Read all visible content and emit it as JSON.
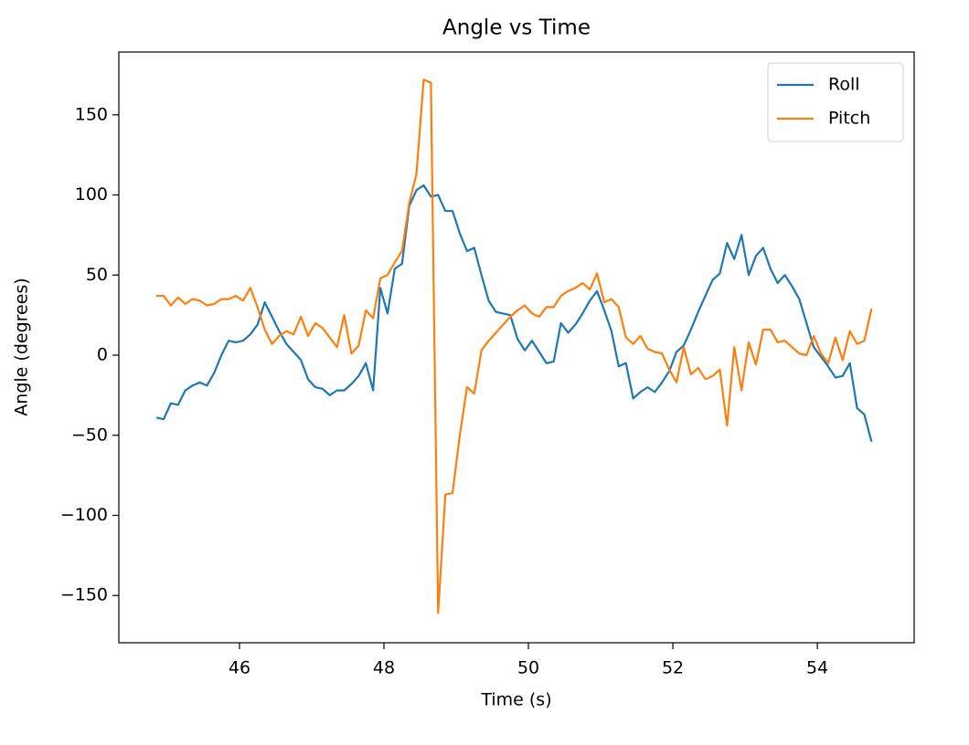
{
  "chart_data": {
    "type": "line",
    "title": "Angle vs Time",
    "x_label": "Time (s)",
    "y_label": "Angle (degrees)",
    "x": [
      44.85,
      44.95,
      45.05,
      45.15,
      45.25,
      45.35,
      45.45,
      45.55,
      45.65,
      45.75,
      45.85,
      45.95,
      46.05,
      46.15,
      46.25,
      46.35,
      46.45,
      46.55,
      46.65,
      46.75,
      46.85,
      46.95,
      47.05,
      47.15,
      47.25,
      47.35,
      47.45,
      47.55,
      47.65,
      47.75,
      47.85,
      47.95,
      48.05,
      48.15,
      48.25,
      48.35,
      48.45,
      48.55,
      48.65,
      48.75,
      48.85,
      48.95,
      49.05,
      49.15,
      49.25,
      49.35,
      49.45,
      49.55,
      49.65,
      49.75,
      49.85,
      49.95,
      50.05,
      50.15,
      50.25,
      50.35,
      50.45,
      50.55,
      50.65,
      50.75,
      50.85,
      50.95,
      51.05,
      51.15,
      51.25,
      51.35,
      51.45,
      51.55,
      51.65,
      51.75,
      51.85,
      51.95,
      52.05,
      52.15,
      52.25,
      52.35,
      52.45,
      52.55,
      52.65,
      52.75,
      52.85,
      52.95,
      53.05,
      53.15,
      53.25,
      53.35,
      53.45,
      53.55,
      53.65,
      53.75,
      53.85,
      53.95,
      54.05,
      54.15,
      54.25,
      54.35,
      54.45,
      54.55,
      54.65,
      54.75
    ],
    "series": [
      {
        "name": "Roll",
        "color": "#1f77b4",
        "values": [
          -39,
          -40,
          -30,
          -31,
          -22,
          -19,
          -17,
          -19,
          -11,
          0,
          9,
          8,
          9,
          13,
          19,
          33,
          24,
          15,
          7,
          2,
          -3,
          -15,
          -20,
          -21,
          -25,
          -22,
          -22,
          -18,
          -13,
          -5,
          -22,
          42,
          26,
          54,
          57,
          93,
          103,
          106,
          99,
          100,
          90,
          90,
          76,
          65,
          67,
          50,
          34,
          27,
          26,
          25,
          10,
          3,
          9,
          2,
          -5,
          -4,
          20,
          14,
          19,
          26,
          34,
          40,
          28,
          15,
          -7,
          -5,
          -27,
          -23,
          -20,
          -23,
          -17,
          -10,
          2,
          6,
          16,
          27,
          37,
          47,
          51,
          70,
          60,
          75,
          50,
          62,
          67,
          54,
          45,
          50,
          43,
          35,
          20,
          5,
          -1,
          -7,
          -14,
          -13,
          -5,
          -33,
          -37,
          -54
        ]
      },
      {
        "name": "Pitch",
        "color": "#ff7f0e",
        "values": [
          37,
          37,
          31,
          36,
          32,
          35,
          34,
          31,
          32,
          35,
          35,
          37,
          34,
          42,
          30,
          16,
          7,
          12,
          15,
          13,
          24,
          12,
          20,
          17,
          11,
          5,
          25,
          1,
          6,
          28,
          23,
          48,
          50,
          58,
          65,
          95,
          113,
          172,
          170,
          -161,
          -87,
          -86,
          -50,
          -20,
          -24,
          3,
          9,
          14,
          19,
          24,
          28,
          31,
          26,
          24,
          30,
          30,
          37,
          40,
          42,
          45,
          41,
          51,
          33,
          35,
          30,
          11,
          7,
          12,
          4,
          2,
          1,
          -9,
          -17,
          5,
          -12,
          -8,
          -15,
          -13,
          -9,
          -44,
          5,
          -22,
          8,
          -6,
          16,
          16,
          8,
          9,
          5,
          1,
          0,
          12,
          1,
          -5,
          11,
          -3,
          15,
          7,
          9,
          29
        ]
      }
    ],
    "xlim": [
      44.33,
      55.34
    ],
    "ylim": [
      -179.5,
      189.2
    ],
    "xticks": [
      46,
      48,
      50,
      52,
      54
    ],
    "yticks": [
      {
        "value": -150,
        "label": "−150"
      },
      {
        "value": -100,
        "label": "−100"
      },
      {
        "value": -50,
        "label": "−50"
      },
      0,
      50,
      100,
      150
    ],
    "legend": "upper right",
    "grid": false
  }
}
